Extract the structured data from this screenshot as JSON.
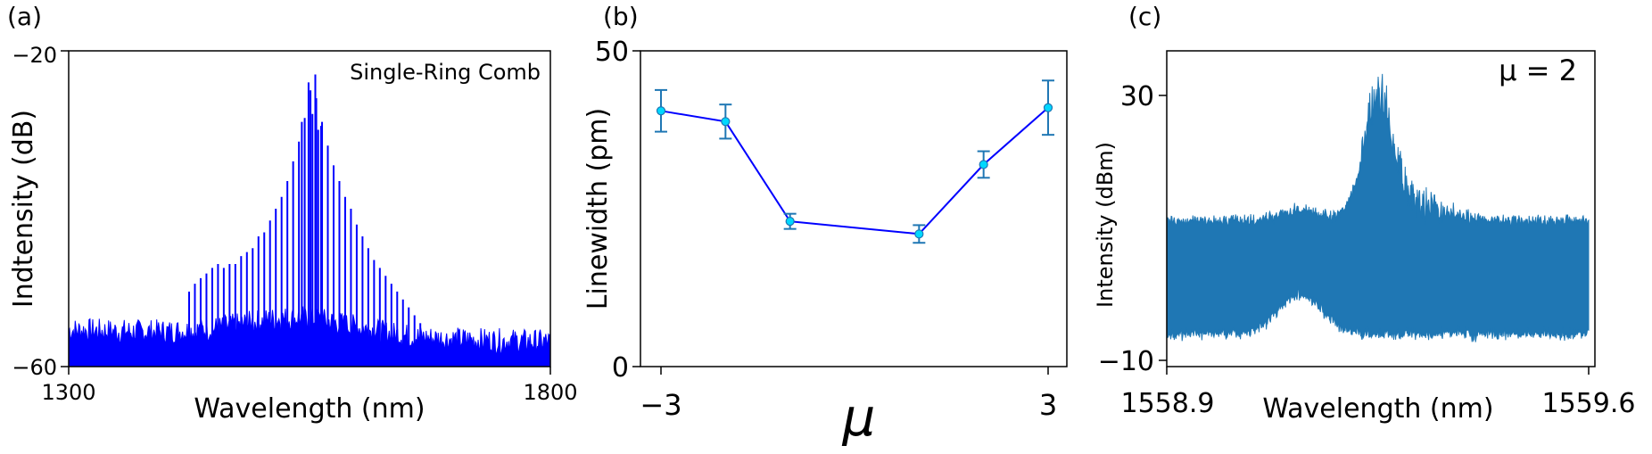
{
  "chart_data": [
    {
      "panel": "(a)",
      "type": "line",
      "title": "",
      "annotation": "Single-Ring Comb",
      "xlabel": "Wavelength (nm)",
      "ylabel": "Indtensity (dB)",
      "xlim": [
        1300,
        1800
      ],
      "ylim": [
        -60,
        -20
      ],
      "xticks": [
        "1300",
        "1800"
      ],
      "yticks": [
        "−20",
        "−60"
      ],
      "color": "#0000ff",
      "noise_floor_db": -57,
      "comb_lines": {
        "wavelength_nm": [
          1425,
          1431,
          1437,
          1443,
          1449,
          1455,
          1461,
          1467,
          1473,
          1479,
          1485,
          1491,
          1497,
          1503,
          1509,
          1515,
          1521,
          1527,
          1533,
          1539,
          1545,
          1551,
          1557,
          1563,
          1569,
          1575,
          1581,
          1587,
          1593,
          1599,
          1605,
          1611,
          1617,
          1623,
          1629,
          1635,
          1641,
          1647,
          1653,
          1659,
          1665
        ],
        "intensity_db": [
          -50.5,
          -49.5,
          -48.8,
          -48.2,
          -47.5,
          -47,
          -47.5,
          -47,
          -47,
          -46,
          -45.5,
          -45,
          -43.5,
          -43,
          -41.5,
          -40,
          -38.5,
          -36.5,
          -34,
          -31.5,
          -28.5,
          -25,
          -26,
          -29,
          -32,
          -34.5,
          -36.5,
          -38.5,
          -40,
          -42,
          -43.5,
          -45,
          -46.5,
          -47.5,
          -48.5,
          -49.5,
          -50.5,
          -51.5,
          -52.5,
          -53.5,
          -54.5
        ]
      },
      "peak_lines": {
        "wavelength_nm": [
          1542,
          1549,
          1553,
          1556,
          1559,
          1562
        ],
        "intensity_db": [
          -29,
          -24,
          -28,
          -23,
          -30,
          -29.5
        ]
      }
    },
    {
      "panel": "(b)",
      "type": "scatter",
      "title": "",
      "xlabel": "μ",
      "ylabel": "Linewidth (pm)",
      "xlim": [
        -3.2,
        3.2
      ],
      "ylim": [
        0,
        50
      ],
      "xticks": [
        "−3",
        "3"
      ],
      "yticks": [
        "0",
        "50"
      ],
      "color": "#0000ff",
      "marker_color": "#00d8ff",
      "errorbar_color": "#1f77b4",
      "x": [
        -3,
        -2,
        -1,
        1,
        2,
        3
      ],
      "y": [
        40.5,
        38.8,
        23,
        21,
        32,
        41
      ],
      "yerr": [
        3.3,
        2.7,
        1.2,
        1.4,
        2.1,
        4.3
      ]
    },
    {
      "panel": "(c)",
      "type": "area",
      "title": "",
      "annotation": "μ = 2",
      "xlabel": "Wavelength (nm)",
      "ylabel": "Intensity (dBm)",
      "xlim": [
        1558.9,
        1559.6
      ],
      "ylim": [
        -10,
        30
      ],
      "xticks": [
        "1558.9",
        "1559.6"
      ],
      "yticks": [
        "30",
        "−10"
      ],
      "color": "#1f77b4",
      "band_top_dbm": 11,
      "band_bottom_dbm": -6,
      "dip_wavelength_nm": 1559.12,
      "peak_wavelength_nm": 1559.25,
      "peak_max_dbm": 31
    }
  ]
}
